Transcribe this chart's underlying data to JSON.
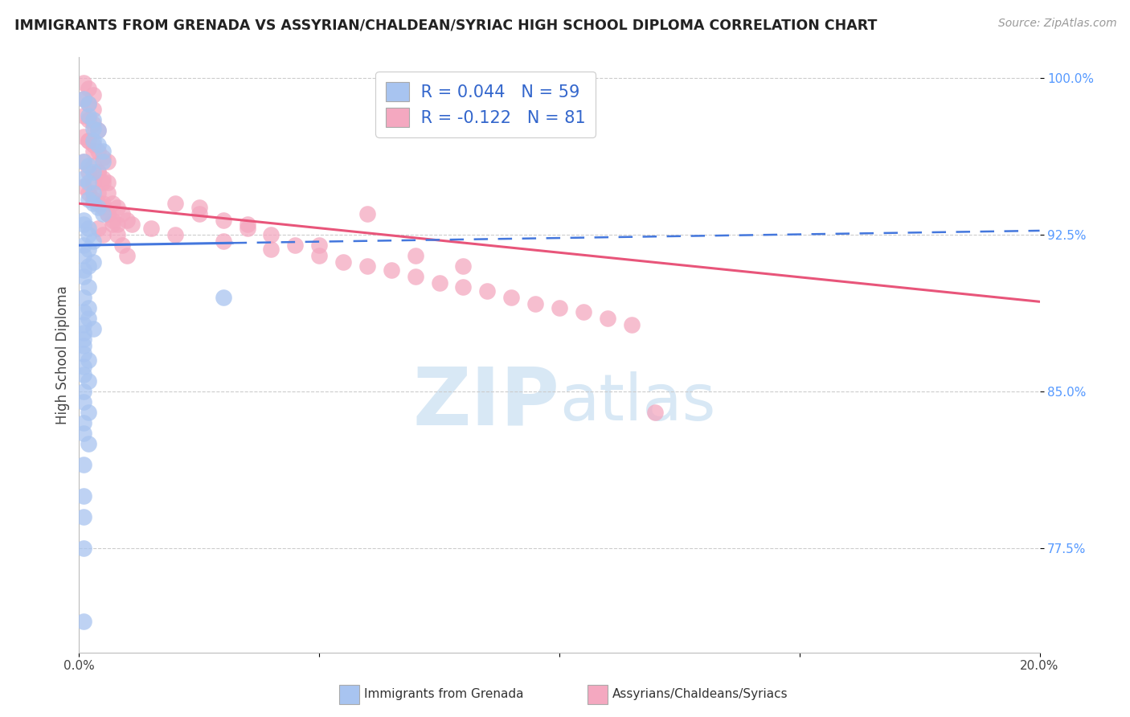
{
  "title": "IMMIGRANTS FROM GRENADA VS ASSYRIAN/CHALDEAN/SYRIAC HIGH SCHOOL DIPLOMA CORRELATION CHART",
  "source": "Source: ZipAtlas.com",
  "ylabel": "High School Diploma",
  "xlim": [
    0.0,
    0.2
  ],
  "ylim": [
    0.725,
    1.01
  ],
  "yticks": [
    0.775,
    0.85,
    0.925,
    1.0
  ],
  "ytick_labels": [
    "77.5%",
    "85.0%",
    "92.5%",
    "100.0%"
  ],
  "xtick_labels": [
    "0.0%",
    "",
    "",
    "",
    "20.0%"
  ],
  "legend_label1": "Immigrants from Grenada",
  "legend_label2": "Assyrians/Chaldeans/Syriacs",
  "R1": 0.044,
  "N1": 59,
  "R2": -0.122,
  "N2": 81,
  "blue_color": "#a8c4f0",
  "pink_color": "#f4a8c0",
  "blue_line_color": "#4477dd",
  "pink_line_color": "#e8557a",
  "blue_scatter_x": [
    0.001,
    0.002,
    0.002,
    0.003,
    0.003,
    0.003,
    0.004,
    0.004,
    0.005,
    0.005,
    0.001,
    0.002,
    0.003,
    0.001,
    0.002,
    0.003,
    0.002,
    0.003,
    0.004,
    0.005,
    0.001,
    0.001,
    0.002,
    0.002,
    0.003,
    0.001,
    0.002,
    0.001,
    0.003,
    0.002,
    0.001,
    0.001,
    0.002,
    0.001,
    0.002,
    0.001,
    0.002,
    0.001,
    0.003,
    0.001,
    0.001,
    0.001,
    0.001,
    0.002,
    0.001,
    0.001,
    0.002,
    0.001,
    0.001,
    0.002,
    0.03,
    0.001,
    0.001,
    0.002,
    0.001,
    0.001,
    0.001,
    0.001,
    0.001
  ],
  "blue_scatter_y": [
    0.99,
    0.988,
    0.982,
    0.98,
    0.976,
    0.97,
    0.975,
    0.968,
    0.965,
    0.96,
    0.96,
    0.958,
    0.955,
    0.952,
    0.95,
    0.945,
    0.942,
    0.94,
    0.938,
    0.935,
    0.932,
    0.93,
    0.928,
    0.925,
    0.922,
    0.92,
    0.918,
    0.915,
    0.912,
    0.91,
    0.908,
    0.905,
    0.9,
    0.895,
    0.89,
    0.888,
    0.885,
    0.882,
    0.88,
    0.878,
    0.875,
    0.872,
    0.868,
    0.865,
    0.862,
    0.858,
    0.855,
    0.85,
    0.845,
    0.84,
    0.895,
    0.835,
    0.83,
    0.825,
    0.815,
    0.8,
    0.79,
    0.775,
    0.74
  ],
  "pink_scatter_x": [
    0.001,
    0.002,
    0.003,
    0.001,
    0.002,
    0.003,
    0.001,
    0.002,
    0.003,
    0.004,
    0.001,
    0.002,
    0.003,
    0.004,
    0.005,
    0.006,
    0.003,
    0.004,
    0.005,
    0.006,
    0.001,
    0.002,
    0.003,
    0.004,
    0.005,
    0.006,
    0.007,
    0.008,
    0.004,
    0.005,
    0.001,
    0.002,
    0.003,
    0.004,
    0.005,
    0.006,
    0.007,
    0.008,
    0.009,
    0.01,
    0.002,
    0.003,
    0.004,
    0.005,
    0.006,
    0.007,
    0.008,
    0.009,
    0.01,
    0.011,
    0.015,
    0.02,
    0.025,
    0.03,
    0.035,
    0.04,
    0.05,
    0.06,
    0.07,
    0.08,
    0.02,
    0.025,
    0.03,
    0.035,
    0.04,
    0.045,
    0.05,
    0.055,
    0.06,
    0.065,
    0.07,
    0.075,
    0.08,
    0.085,
    0.09,
    0.095,
    0.1,
    0.105,
    0.11,
    0.115,
    0.12
  ],
  "pink_scatter_y": [
    0.998,
    0.995,
    0.992,
    0.99,
    0.988,
    0.985,
    0.982,
    0.98,
    0.978,
    0.975,
    0.972,
    0.97,
    0.968,
    0.965,
    0.962,
    0.96,
    0.958,
    0.955,
    0.952,
    0.95,
    0.948,
    0.945,
    0.942,
    0.94,
    0.938,
    0.935,
    0.932,
    0.93,
    0.928,
    0.925,
    0.96,
    0.955,
    0.95,
    0.945,
    0.94,
    0.935,
    0.93,
    0.925,
    0.92,
    0.915,
    0.97,
    0.965,
    0.955,
    0.95,
    0.945,
    0.94,
    0.938,
    0.935,
    0.932,
    0.93,
    0.928,
    0.925,
    0.938,
    0.922,
    0.93,
    0.918,
    0.92,
    0.935,
    0.915,
    0.91,
    0.94,
    0.935,
    0.932,
    0.928,
    0.925,
    0.92,
    0.915,
    0.912,
    0.91,
    0.908,
    0.905,
    0.902,
    0.9,
    0.898,
    0.895,
    0.892,
    0.89,
    0.888,
    0.885,
    0.882,
    0.84
  ]
}
